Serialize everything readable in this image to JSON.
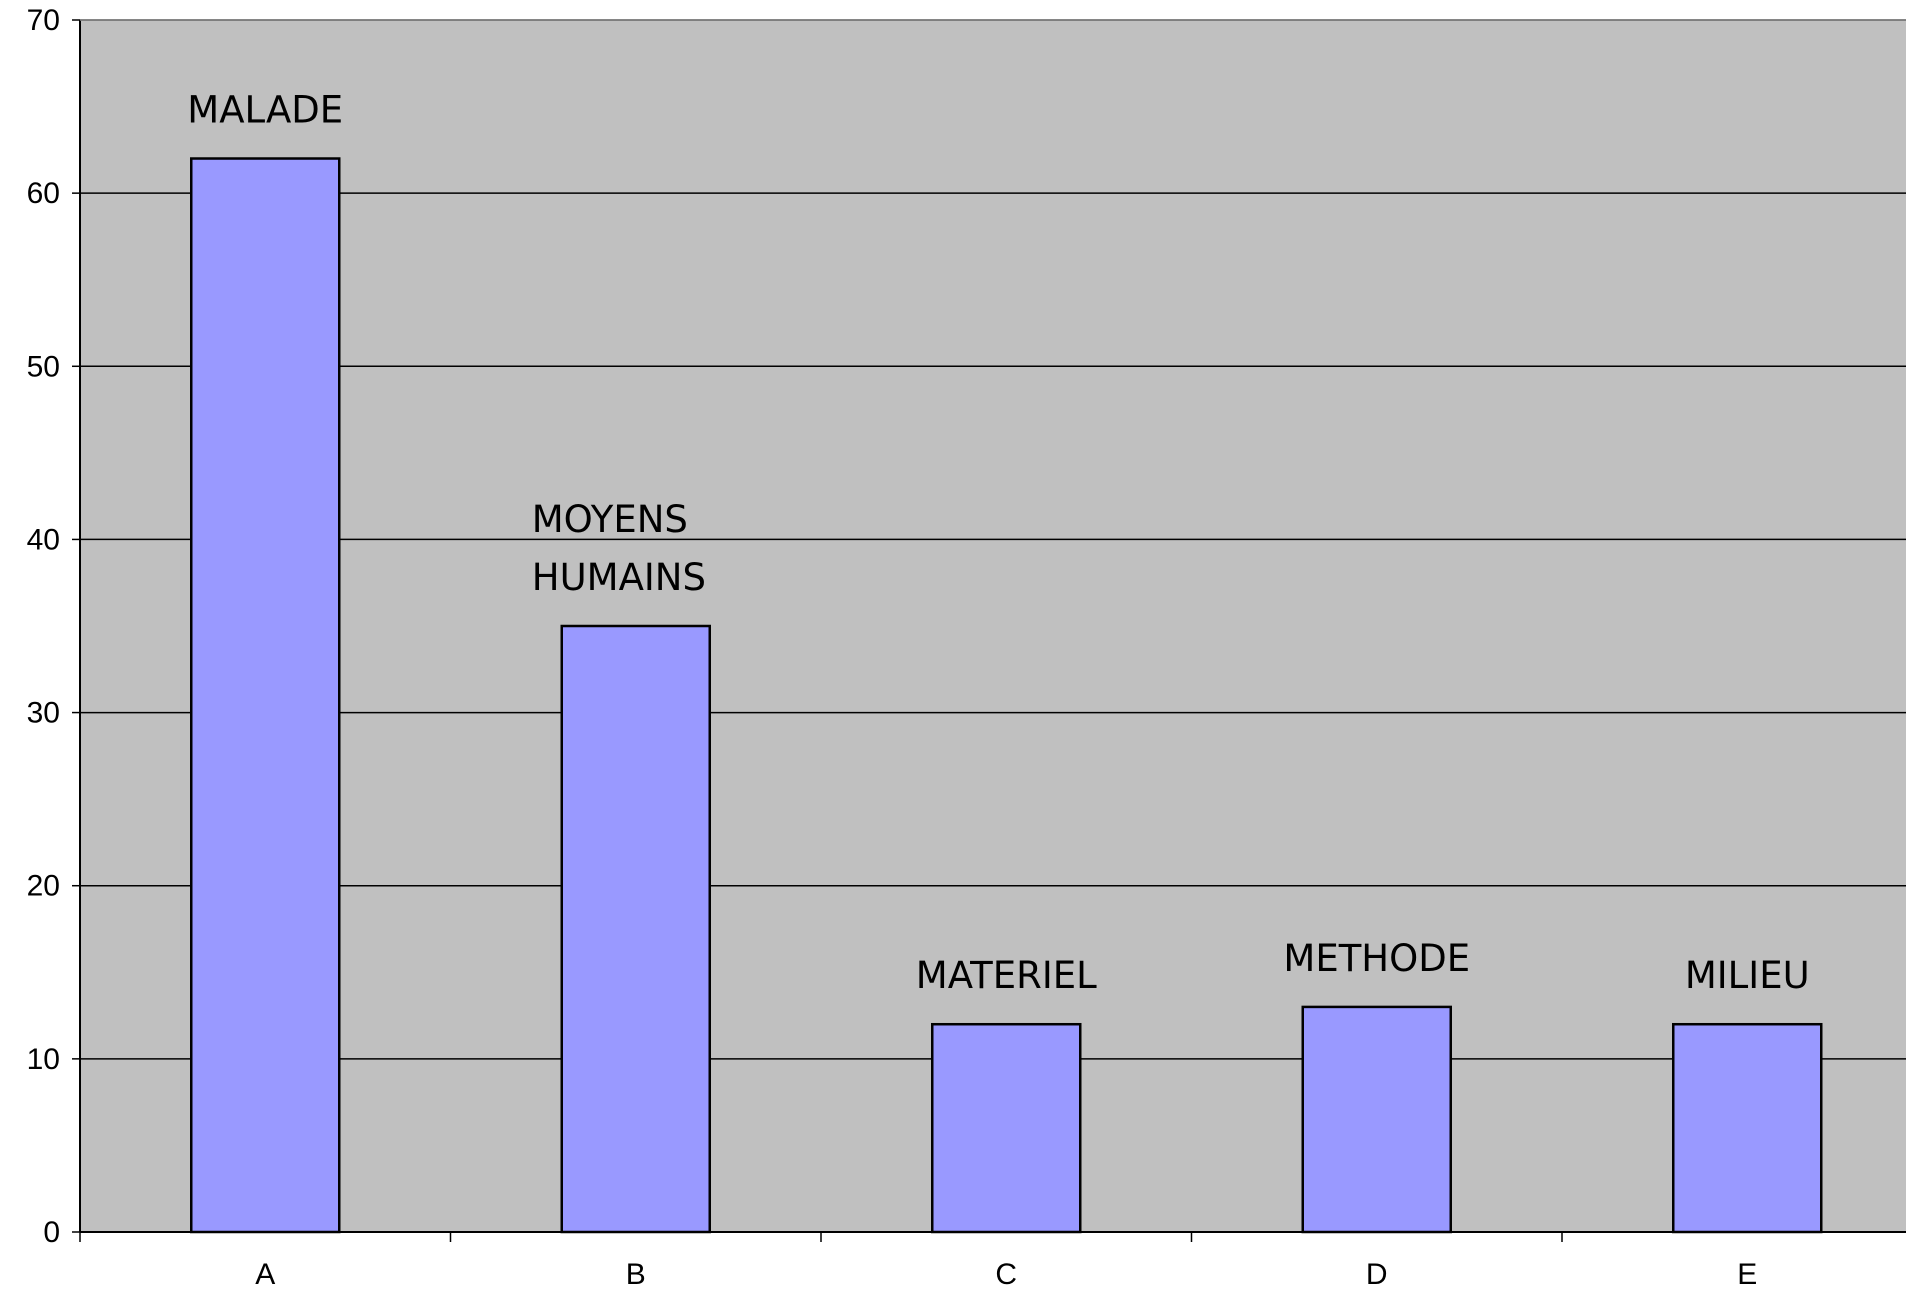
{
  "chart_data": {
    "type": "bar",
    "categories": [
      "A",
      "B",
      "C",
      "D",
      "E"
    ],
    "values": [
      62,
      35,
      12,
      13,
      12
    ],
    "bar_labels": [
      [
        "MALADE"
      ],
      [
        "MOYENS",
        "HUMAINS"
      ],
      [
        "MATERIEL"
      ],
      [
        "METHODE"
      ],
      [
        "MILIEU"
      ]
    ],
    "yticks": [
      0,
      10,
      20,
      30,
      40,
      50,
      60,
      70
    ],
    "ylim": [
      0,
      70
    ],
    "grid": true,
    "title": "",
    "xlabel": "",
    "ylabel": "",
    "colors": {
      "plot_background": "#c0c0c0",
      "bar_fill": "#9999ff",
      "bar_stroke": "#000000",
      "grid": "#000000"
    }
  }
}
